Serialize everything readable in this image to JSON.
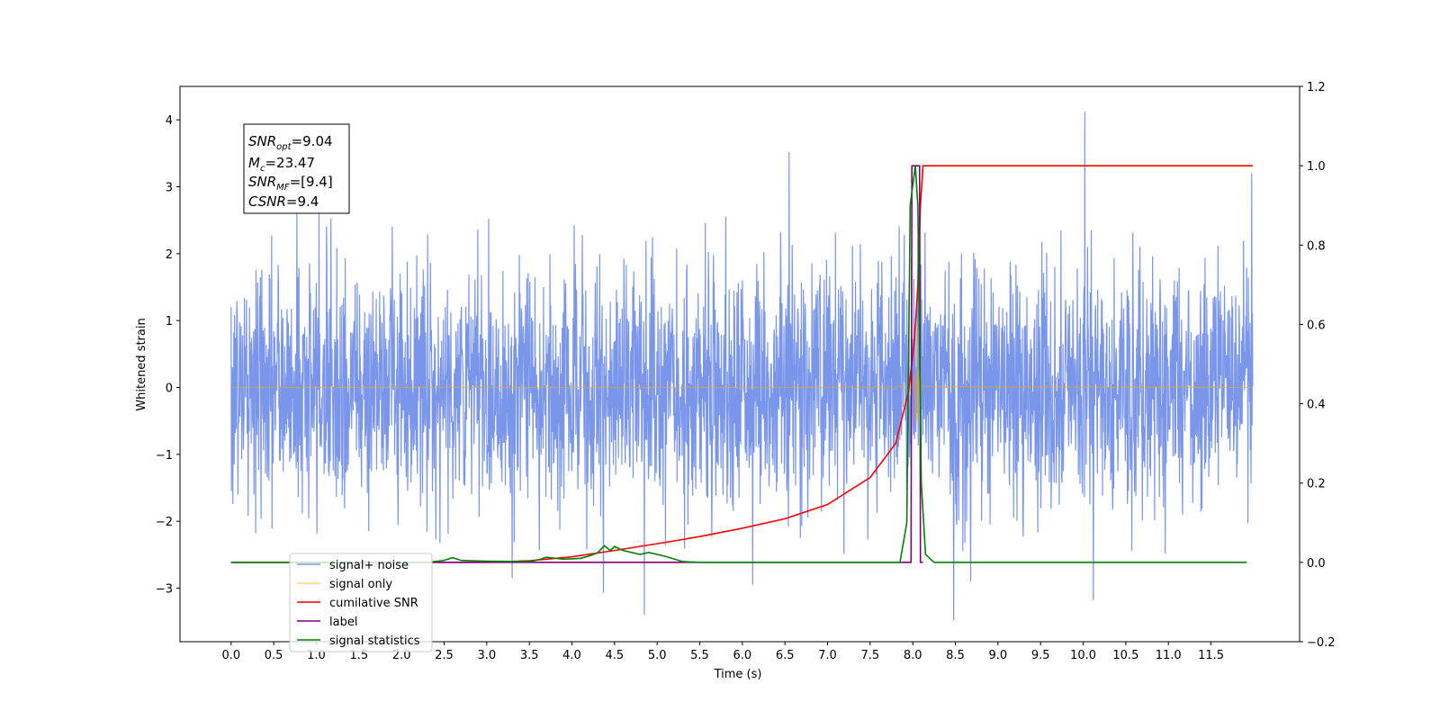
{
  "chart_data": {
    "type": "line",
    "xlabel": "Time (s)",
    "ylabel": "Whitened strain",
    "xlim": [
      -0.6,
      12.54
    ],
    "ylim": [
      -3.8,
      4.5
    ],
    "y2lim": [
      -0.2,
      1.2
    ],
    "x_ticks": [
      0.0,
      0.5,
      1.0,
      1.5,
      2.0,
      2.5,
      3.0,
      3.5,
      4.0,
      4.5,
      5.0,
      5.5,
      6.0,
      6.5,
      7.0,
      7.5,
      8.0,
      8.5,
      9.0,
      9.5,
      10.0,
      10.5,
      11.0,
      11.5
    ],
    "x_tick_labels": [
      "0.0",
      "0.5",
      "1.0",
      "1.5",
      "2.0",
      "2.5",
      "3.0",
      "3.5",
      "4.0",
      "4.5",
      "5.0",
      "5.5",
      "6.0",
      "6.5",
      "7.0",
      "7.5",
      "8.0",
      "8.5",
      "9.0",
      "9.5",
      "10.0",
      "10.5",
      "11.0",
      "11.5"
    ],
    "y_ticks": [
      -3,
      -2,
      -1,
      0,
      1,
      2,
      3,
      4
    ],
    "y_tick_labels": [
      "−3",
      "−2",
      "−1",
      "0",
      "1",
      "2",
      "3",
      "4"
    ],
    "y2_ticks": [
      -0.2,
      0.0,
      0.2,
      0.4,
      0.6,
      0.8,
      1.0,
      1.2
    ],
    "y2_tick_labels": [
      "−0.2",
      "0.0",
      "0.2",
      "0.4",
      "0.6",
      "0.8",
      "1.0",
      "1.2"
    ],
    "grid": false,
    "legend_position": "bottom-left",
    "annotation": {
      "lines": [
        {
          "base": "SNR",
          "sub": "opt",
          "value": "=9.04"
        },
        {
          "base": "M",
          "sub": "c",
          "value": "=23.47"
        },
        {
          "base": "SNR",
          "sub": "MF",
          "value": "=[9.4]"
        },
        {
          "base": "CSNR",
          "sub": "",
          "value": "=9.4"
        }
      ]
    },
    "series": [
      {
        "name": "signal+ noise",
        "color": "#4169e1",
        "axis": "left",
        "description": "whitened noisy strain, ~N(0,0.9) between 0.0 and 11.99 s",
        "x_range": [
          0.0,
          11.99
        ],
        "spikes": [
          [
            0.77,
            2.6
          ],
          [
            1.03,
            2.62
          ],
          [
            6.55,
            3.52
          ],
          [
            10.02,
            4.12
          ],
          [
            11.98,
            3.2
          ],
          [
            4.37,
            -3.07
          ],
          [
            4.85,
            -3.4
          ],
          [
            6.12,
            -2.95
          ],
          [
            8.48,
            -3.48
          ],
          [
            10.12,
            -3.18
          ],
          [
            3.3,
            -2.85
          ],
          [
            8.68,
            -2.9
          ]
        ]
      },
      {
        "name": "signal only",
        "color": "#ffa500",
        "axis": "left",
        "description": "chirp waveform, amplitude rising from 0 to ~0.95 with merger near 8.05 s",
        "x_range": [
          0.0,
          11.99
        ],
        "merger_time": 8.05,
        "peak_amplitude": 0.95
      },
      {
        "name": "cumilative SNR",
        "color": "#ff0000",
        "axis": "right",
        "points": [
          [
            0.0,
            0.0
          ],
          [
            3.0,
            0.0
          ],
          [
            3.5,
            0.004
          ],
          [
            4.0,
            0.014
          ],
          [
            4.5,
            0.03
          ],
          [
            5.0,
            0.047
          ],
          [
            5.5,
            0.065
          ],
          [
            6.0,
            0.086
          ],
          [
            6.5,
            0.11
          ],
          [
            7.0,
            0.146
          ],
          [
            7.5,
            0.214
          ],
          [
            7.8,
            0.3
          ],
          [
            7.95,
            0.43
          ],
          [
            8.02,
            0.56
          ],
          [
            8.06,
            0.7
          ],
          [
            8.09,
            0.9
          ],
          [
            8.12,
            1.0
          ],
          [
            11.99,
            1.0
          ]
        ]
      },
      {
        "name": "label",
        "color": "#800080",
        "axis": "right",
        "points": [
          [
            0.0,
            0.0
          ],
          [
            7.98,
            0.0
          ],
          [
            7.99,
            1.0
          ],
          [
            8.08,
            1.0
          ],
          [
            8.09,
            0.0
          ],
          [
            8.12,
            0.0
          ]
        ]
      },
      {
        "name": "signal statistics",
        "color": "#008000",
        "axis": "right",
        "points": [
          [
            0.0,
            0.0
          ],
          [
            2.3,
            0.0
          ],
          [
            2.5,
            0.005
          ],
          [
            2.6,
            0.012
          ],
          [
            2.7,
            0.005
          ],
          [
            3.0,
            0.003
          ],
          [
            3.5,
            0.002
          ],
          [
            3.6,
            0.006
          ],
          [
            3.7,
            0.013
          ],
          [
            3.9,
            0.008
          ],
          [
            4.1,
            0.01
          ],
          [
            4.2,
            0.016
          ],
          [
            4.3,
            0.024
          ],
          [
            4.38,
            0.042
          ],
          [
            4.45,
            0.03
          ],
          [
            4.5,
            0.04
          ],
          [
            4.6,
            0.03
          ],
          [
            4.8,
            0.02
          ],
          [
            4.9,
            0.025
          ],
          [
            5.1,
            0.015
          ],
          [
            5.3,
            0.002
          ],
          [
            5.5,
            0.0
          ],
          [
            7.85,
            0.0
          ],
          [
            7.93,
            0.1
          ],
          [
            7.97,
            0.9
          ],
          [
            8.0,
            0.95
          ],
          [
            8.03,
            1.0
          ],
          [
            8.06,
            0.9
          ],
          [
            8.1,
            0.2
          ],
          [
            8.15,
            0.02
          ],
          [
            8.25,
            0.0
          ],
          [
            11.92,
            0.0
          ]
        ]
      }
    ],
    "legend": [
      {
        "label": "signal+ noise",
        "color": "#4169e1",
        "alpha": 0.7
      },
      {
        "label": "signal only",
        "color": "#ffa500",
        "alpha": 0.5
      },
      {
        "label": "cumilative SNR",
        "color": "#ff0000",
        "alpha": 1
      },
      {
        "label": "label",
        "color": "#800080",
        "alpha": 1
      },
      {
        "label": "signal statistics",
        "color": "#008000",
        "alpha": 1
      }
    ]
  }
}
